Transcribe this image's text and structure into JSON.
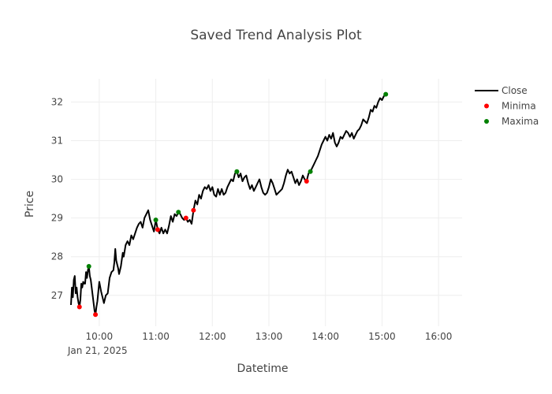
{
  "chart_data": {
    "type": "line",
    "title": "Saved Trend Analysis Plot",
    "xlabel": "Datetime",
    "ylabel": "Price",
    "x_ticks": [
      "10:00",
      "11:00",
      "12:00",
      "13:00",
      "14:00",
      "15:00",
      "16:00"
    ],
    "x_tick_date": "Jan 21, 2025",
    "y_ticks": [
      27,
      28,
      29,
      30,
      31,
      32
    ],
    "xlim": [
      "09:30",
      "16:25"
    ],
    "ylim": [
      26.2,
      32.6
    ],
    "grid": true,
    "legend_position": "top-right",
    "series": [
      {
        "name": "Close",
        "color": "#000000",
        "mode": "line",
        "points": [
          [
            "09:30",
            26.75
          ],
          [
            "09:31",
            27.2
          ],
          [
            "09:32",
            26.95
          ],
          [
            "09:33",
            27.4
          ],
          [
            "09:34",
            27.5
          ],
          [
            "09:35",
            27.05
          ],
          [
            "09:36",
            27.2
          ],
          [
            "09:37",
            26.95
          ],
          [
            "09:38",
            26.8
          ],
          [
            "09:39",
            26.7
          ],
          [
            "09:40",
            26.9
          ],
          [
            "09:41",
            27.3
          ],
          [
            "09:42",
            27.2
          ],
          [
            "09:43",
            27.35
          ],
          [
            "09:44",
            27.3
          ],
          [
            "09:45",
            27.3
          ],
          [
            "09:46",
            27.6
          ],
          [
            "09:47",
            27.45
          ],
          [
            "09:48",
            27.65
          ],
          [
            "09:49",
            27.75
          ],
          [
            "09:50",
            27.5
          ],
          [
            "09:51",
            27.4
          ],
          [
            "09:52",
            27.2
          ],
          [
            "09:53",
            27.0
          ],
          [
            "09:54",
            26.8
          ],
          [
            "09:55",
            26.6
          ],
          [
            "09:56",
            26.5
          ],
          [
            "09:57",
            26.7
          ],
          [
            "09:58",
            26.85
          ],
          [
            "10:00",
            27.35
          ],
          [
            "10:02",
            27.1
          ],
          [
            "10:04",
            26.9
          ],
          [
            "10:05",
            26.8
          ],
          [
            "10:07",
            27.0
          ],
          [
            "10:09",
            27.05
          ],
          [
            "10:11",
            27.45
          ],
          [
            "10:13",
            27.6
          ],
          [
            "10:15",
            27.65
          ],
          [
            "10:16",
            27.85
          ],
          [
            "10:17",
            28.2
          ],
          [
            "10:18",
            27.9
          ],
          [
            "10:20",
            27.7
          ],
          [
            "10:21",
            27.55
          ],
          [
            "10:23",
            27.75
          ],
          [
            "10:25",
            28.1
          ],
          [
            "10:26",
            28.0
          ],
          [
            "10:28",
            28.3
          ],
          [
            "10:30",
            28.4
          ],
          [
            "10:32",
            28.3
          ],
          [
            "10:34",
            28.55
          ],
          [
            "10:36",
            28.45
          ],
          [
            "10:38",
            28.6
          ],
          [
            "10:40",
            28.75
          ],
          [
            "10:42",
            28.85
          ],
          [
            "10:44",
            28.9
          ],
          [
            "10:46",
            28.75
          ],
          [
            "10:48",
            29.0
          ],
          [
            "10:50",
            29.1
          ],
          [
            "10:52",
            29.2
          ],
          [
            "10:54",
            28.95
          ],
          [
            "10:56",
            28.8
          ],
          [
            "10:58",
            28.65
          ],
          [
            "11:00",
            28.95
          ],
          [
            "11:02",
            28.7
          ],
          [
            "11:04",
            28.6
          ],
          [
            "11:06",
            28.75
          ],
          [
            "11:08",
            28.6
          ],
          [
            "11:10",
            28.7
          ],
          [
            "11:12",
            28.6
          ],
          [
            "11:14",
            28.8
          ],
          [
            "11:16",
            29.05
          ],
          [
            "11:18",
            28.9
          ],
          [
            "11:20",
            29.1
          ],
          [
            "11:22",
            29.05
          ],
          [
            "11:24",
            29.15
          ],
          [
            "11:26",
            29.1
          ],
          [
            "11:28",
            29.0
          ],
          [
            "11:30",
            28.95
          ],
          [
            "11:32",
            29.0
          ],
          [
            "11:34",
            28.9
          ],
          [
            "11:36",
            28.95
          ],
          [
            "11:38",
            28.85
          ],
          [
            "11:40",
            29.2
          ],
          [
            "11:42",
            29.45
          ],
          [
            "11:44",
            29.35
          ],
          [
            "11:46",
            29.6
          ],
          [
            "11:48",
            29.5
          ],
          [
            "11:50",
            29.7
          ],
          [
            "11:52",
            29.8
          ],
          [
            "11:54",
            29.75
          ],
          [
            "11:56",
            29.85
          ],
          [
            "11:58",
            29.7
          ],
          [
            "12:00",
            29.8
          ],
          [
            "12:02",
            29.6
          ],
          [
            "12:04",
            29.55
          ],
          [
            "12:06",
            29.75
          ],
          [
            "12:08",
            29.6
          ],
          [
            "12:10",
            29.75
          ],
          [
            "12:12",
            29.6
          ],
          [
            "12:14",
            29.65
          ],
          [
            "12:16",
            29.8
          ],
          [
            "12:18",
            29.9
          ],
          [
            "12:20",
            30.0
          ],
          [
            "12:22",
            29.95
          ],
          [
            "12:24",
            30.15
          ],
          [
            "12:26",
            30.2
          ],
          [
            "12:28",
            30.05
          ],
          [
            "12:30",
            30.15
          ],
          [
            "12:32",
            29.95
          ],
          [
            "12:34",
            30.05
          ],
          [
            "12:36",
            30.1
          ],
          [
            "12:38",
            29.9
          ],
          [
            "12:40",
            29.75
          ],
          [
            "12:42",
            29.85
          ],
          [
            "12:44",
            29.7
          ],
          [
            "12:46",
            29.8
          ],
          [
            "12:48",
            29.9
          ],
          [
            "12:50",
            30.0
          ],
          [
            "12:52",
            29.8
          ],
          [
            "12:54",
            29.65
          ],
          [
            "12:56",
            29.6
          ],
          [
            "12:58",
            29.65
          ],
          [
            "13:00",
            29.8
          ],
          [
            "13:02",
            30.0
          ],
          [
            "13:04",
            29.9
          ],
          [
            "13:06",
            29.75
          ],
          [
            "13:08",
            29.6
          ],
          [
            "13:10",
            29.65
          ],
          [
            "13:12",
            29.7
          ],
          [
            "13:14",
            29.75
          ],
          [
            "13:16",
            29.9
          ],
          [
            "13:18",
            30.1
          ],
          [
            "13:20",
            30.25
          ],
          [
            "13:22",
            30.15
          ],
          [
            "13:24",
            30.2
          ],
          [
            "13:26",
            30.05
          ],
          [
            "13:28",
            29.9
          ],
          [
            "13:30",
            30.0
          ],
          [
            "13:32",
            29.85
          ],
          [
            "13:34",
            29.95
          ],
          [
            "13:36",
            30.1
          ],
          [
            "13:38",
            30.0
          ],
          [
            "13:40",
            29.95
          ],
          [
            "13:42",
            30.15
          ],
          [
            "13:44",
            30.2
          ],
          [
            "13:46",
            30.3
          ],
          [
            "13:48",
            30.4
          ],
          [
            "13:50",
            30.5
          ],
          [
            "13:52",
            30.6
          ],
          [
            "13:54",
            30.75
          ],
          [
            "13:56",
            30.9
          ],
          [
            "13:58",
            31.0
          ],
          [
            "14:00",
            31.1
          ],
          [
            "14:02",
            31.0
          ],
          [
            "14:04",
            31.15
          ],
          [
            "14:06",
            31.05
          ],
          [
            "14:08",
            31.2
          ],
          [
            "14:10",
            30.95
          ],
          [
            "14:12",
            30.85
          ],
          [
            "14:14",
            30.95
          ],
          [
            "14:16",
            31.1
          ],
          [
            "14:18",
            31.05
          ],
          [
            "14:20",
            31.15
          ],
          [
            "14:22",
            31.25
          ],
          [
            "14:24",
            31.2
          ],
          [
            "14:26",
            31.1
          ],
          [
            "14:28",
            31.2
          ],
          [
            "14:30",
            31.05
          ],
          [
            "14:32",
            31.15
          ],
          [
            "14:34",
            31.25
          ],
          [
            "14:36",
            31.3
          ],
          [
            "14:38",
            31.4
          ],
          [
            "14:40",
            31.55
          ],
          [
            "14:42",
            31.5
          ],
          [
            "14:44",
            31.45
          ],
          [
            "14:46",
            31.6
          ],
          [
            "14:48",
            31.8
          ],
          [
            "14:50",
            31.75
          ],
          [
            "14:52",
            31.9
          ],
          [
            "14:54",
            31.85
          ],
          [
            "14:56",
            32.0
          ],
          [
            "14:58",
            32.1
          ],
          [
            "15:00",
            32.05
          ],
          [
            "15:02",
            32.15
          ],
          [
            "15:04",
            32.2
          ],
          [
            "15:05",
            32.2
          ]
        ]
      },
      {
        "name": "Minima",
        "color": "#ff0000",
        "mode": "markers",
        "points": [
          [
            "09:39",
            26.7
          ],
          [
            "09:56",
            26.5
          ],
          [
            "11:02",
            28.7
          ],
          [
            "11:32",
            29.0
          ],
          [
            "11:40",
            29.2
          ],
          [
            "13:40",
            29.95
          ]
        ]
      },
      {
        "name": "Maxima",
        "color": "#008000",
        "mode": "markers",
        "points": [
          [
            "09:49",
            27.75
          ],
          [
            "11:00",
            28.95
          ],
          [
            "11:24",
            29.15
          ],
          [
            "12:26",
            30.2
          ],
          [
            "13:44",
            30.2
          ],
          [
            "15:04",
            32.2
          ]
        ]
      }
    ]
  }
}
